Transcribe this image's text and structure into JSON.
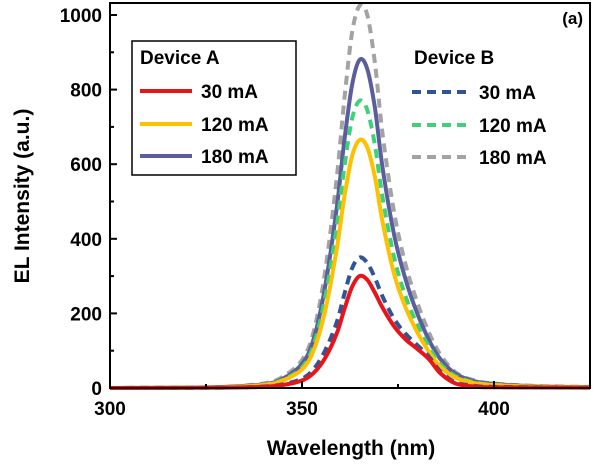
{
  "chart_data": {
    "type": "line",
    "panel_label": "(a)",
    "xlabel": "Wavelength (nm)",
    "ylabel": "EL Intensity (a.u.)",
    "xlim": [
      300,
      425
    ],
    "ylim": [
      0,
      1000
    ],
    "xticks": [
      300,
      350,
      400
    ],
    "yticks": [
      0,
      200,
      400,
      600,
      800,
      1000
    ],
    "grid": false,
    "legends": [
      {
        "title": "Device A",
        "placement": "top-left",
        "entries": [
          {
            "label": "30 mA",
            "color": "#e8141a",
            "dash": "solid"
          },
          {
            "label": "120 mA",
            "color": "#ffc000",
            "dash": "solid"
          },
          {
            "label": "180 mA",
            "color": "#5a5e9c",
            "dash": "solid"
          }
        ]
      },
      {
        "title": "Device B",
        "placement": "top-right",
        "entries": [
          {
            "label": "30 mA",
            "color": "#2f5597",
            "dash": "dashed"
          },
          {
            "label": "120 mA",
            "color": "#3fd17a",
            "dash": "dashed"
          },
          {
            "label": "180 mA",
            "color": "#a3a3a3",
            "dash": "dashed"
          }
        ]
      }
    ],
    "series": [
      {
        "name": "Device B 180 mA",
        "color": "#a3a3a3",
        "dash": "dashed",
        "x": [
          300,
          320,
          330,
          340,
          345,
          350,
          353,
          356,
          359,
          361,
          363,
          365,
          367,
          369,
          371,
          374,
          377,
          380,
          383,
          386,
          390,
          395,
          400,
          410,
          425
        ],
        "y": [
          0,
          1,
          3,
          12,
          30,
          75,
          150,
          310,
          560,
          770,
          950,
          1025,
          1000,
          870,
          680,
          470,
          330,
          230,
          150,
          90,
          42,
          20,
          12,
          6,
          3
        ]
      },
      {
        "name": "Device A 180 mA",
        "color": "#5a5e9c",
        "dash": "solid",
        "x": [
          300,
          320,
          330,
          340,
          345,
          350,
          353,
          356,
          359,
          361,
          363,
          365,
          367,
          369,
          371,
          374,
          377,
          380,
          383,
          386,
          390,
          395,
          400,
          410,
          425
        ],
        "y": [
          0,
          1,
          3,
          10,
          25,
          65,
          130,
          270,
          480,
          660,
          810,
          880,
          855,
          750,
          590,
          410,
          290,
          200,
          130,
          78,
          38,
          18,
          11,
          5,
          2
        ]
      },
      {
        "name": "Device B 120 mA",
        "color": "#3fd17a",
        "dash": "dashed",
        "x": [
          300,
          320,
          330,
          340,
          345,
          350,
          353,
          356,
          359,
          361,
          363,
          365,
          367,
          369,
          371,
          374,
          377,
          380,
          383,
          386,
          390,
          395,
          400,
          410,
          425
        ],
        "y": [
          0,
          1,
          2,
          9,
          22,
          55,
          115,
          240,
          430,
          590,
          720,
          770,
          745,
          650,
          510,
          350,
          245,
          170,
          112,
          65,
          32,
          15,
          9,
          4,
          2
        ]
      },
      {
        "name": "Device A 120 mA",
        "color": "#ffc000",
        "dash": "solid",
        "x": [
          300,
          320,
          330,
          340,
          345,
          350,
          353,
          356,
          359,
          361,
          363,
          365,
          367,
          369,
          371,
          374,
          377,
          380,
          383,
          386,
          390,
          395,
          400,
          410,
          425
        ],
        "y": [
          0,
          1,
          2,
          8,
          20,
          50,
          100,
          205,
          370,
          510,
          620,
          665,
          645,
          565,
          445,
          305,
          215,
          150,
          98,
          58,
          28,
          13,
          8,
          4,
          2
        ]
      },
      {
        "name": "Device B 30 mA",
        "color": "#2f5597",
        "dash": "dashed",
        "x": [
          300,
          330,
          340,
          345,
          350,
          353,
          356,
          359,
          361,
          363,
          365,
          367,
          369,
          371,
          374,
          377,
          380,
          383,
          386,
          390,
          395,
          400,
          425
        ],
        "y": [
          0,
          1,
          4,
          10,
          25,
          50,
          100,
          175,
          250,
          320,
          350,
          335,
          295,
          245,
          185,
          145,
          115,
          85,
          45,
          15,
          6,
          3,
          1
        ]
      },
      {
        "name": "Device A 30 mA",
        "color": "#e8141a",
        "dash": "solid",
        "x": [
          300,
          330,
          340,
          345,
          350,
          353,
          356,
          359,
          361,
          363,
          365,
          367,
          369,
          371,
          374,
          377,
          380,
          383,
          386,
          390,
          395,
          400,
          425
        ],
        "y": [
          0,
          1,
          3,
          8,
          20,
          40,
          80,
          145,
          210,
          270,
          300,
          290,
          255,
          215,
          165,
          130,
          105,
          78,
          40,
          12,
          4,
          2,
          1
        ]
      }
    ]
  }
}
